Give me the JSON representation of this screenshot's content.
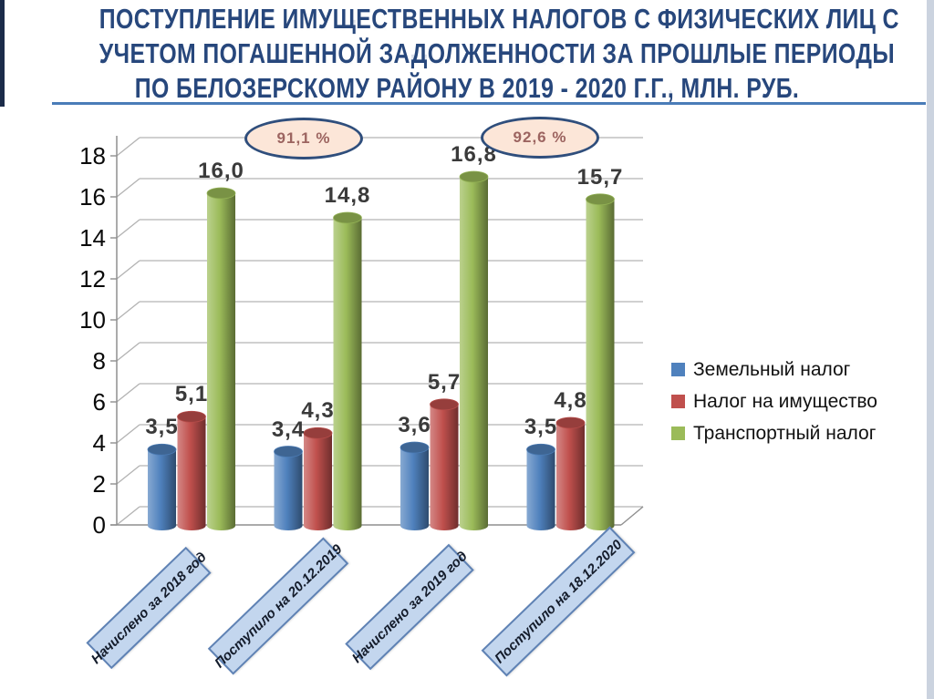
{
  "header": {
    "title_lines": [
      "ПОСТУПЛЕНИЕ ИМУЩЕСТВЕННЫХ НАЛОГОВ С ФИЗИЧЕСКИХ ЛИЦ С",
      "УЧЕТОМ ПОГАШЕННОЙ ЗАДОЛЖЕННОСТИ ЗА ПРОШЛЫЕ ПЕРИОДЫ",
      "ПО БЕЛОЗЕРСКОМУ РАЙОНУ В 2019 - 2020 Г.Г., МЛН. РУБ."
    ]
  },
  "colors": {
    "title": "#27477c",
    "underline": "#4a7cb8",
    "annotation_fill": "#fce6d8",
    "annotation_border": "#2f4e7c",
    "annotation_text": "#9c6460",
    "category_box_fill": "#c3d6ee",
    "category_box_border": "#5f82b4"
  },
  "chart_data": {
    "type": "bar",
    "subtype": "3d-cylinder",
    "title": "Поступление имущественных налогов с физических лиц с учетом погашенной задолженности за прошлые периоды по Белозерскому району в 2019 - 2020 г.г., млн. руб.",
    "categories": [
      "Начислено за 2018 год",
      "Поступило  на 20.12.2019",
      "Начислено за 2019 год",
      "Поступило на 18.12.2020"
    ],
    "series": [
      {
        "name": "Земельный налог",
        "color": "#4f81bd",
        "values": [
          3.5,
          3.4,
          3.6,
          3.5
        ],
        "labels": [
          "3,5",
          "3,4",
          "3,6",
          "3,5"
        ]
      },
      {
        "name": "Налог на имущество",
        "color": "#c0504d",
        "values": [
          5.1,
          4.3,
          5.7,
          4.8
        ],
        "labels": [
          "5,1",
          "4,3",
          "5,7",
          "4,8"
        ]
      },
      {
        "name": "Транспортный налог",
        "color": "#9bbb59",
        "values": [
          16.0,
          14.8,
          16.8,
          15.7
        ],
        "labels": [
          "16,0",
          "14,8",
          "16,8",
          "15,7"
        ]
      }
    ],
    "yticks": [
      0,
      2,
      4,
      6,
      8,
      10,
      12,
      14,
      16,
      18
    ],
    "ylim": [
      0,
      18
    ],
    "xlabel": "",
    "ylabel": "",
    "grid": true,
    "legend_position": "right",
    "annotations": [
      {
        "text": "91,1 %"
      },
      {
        "text": "92,6 %"
      }
    ]
  }
}
